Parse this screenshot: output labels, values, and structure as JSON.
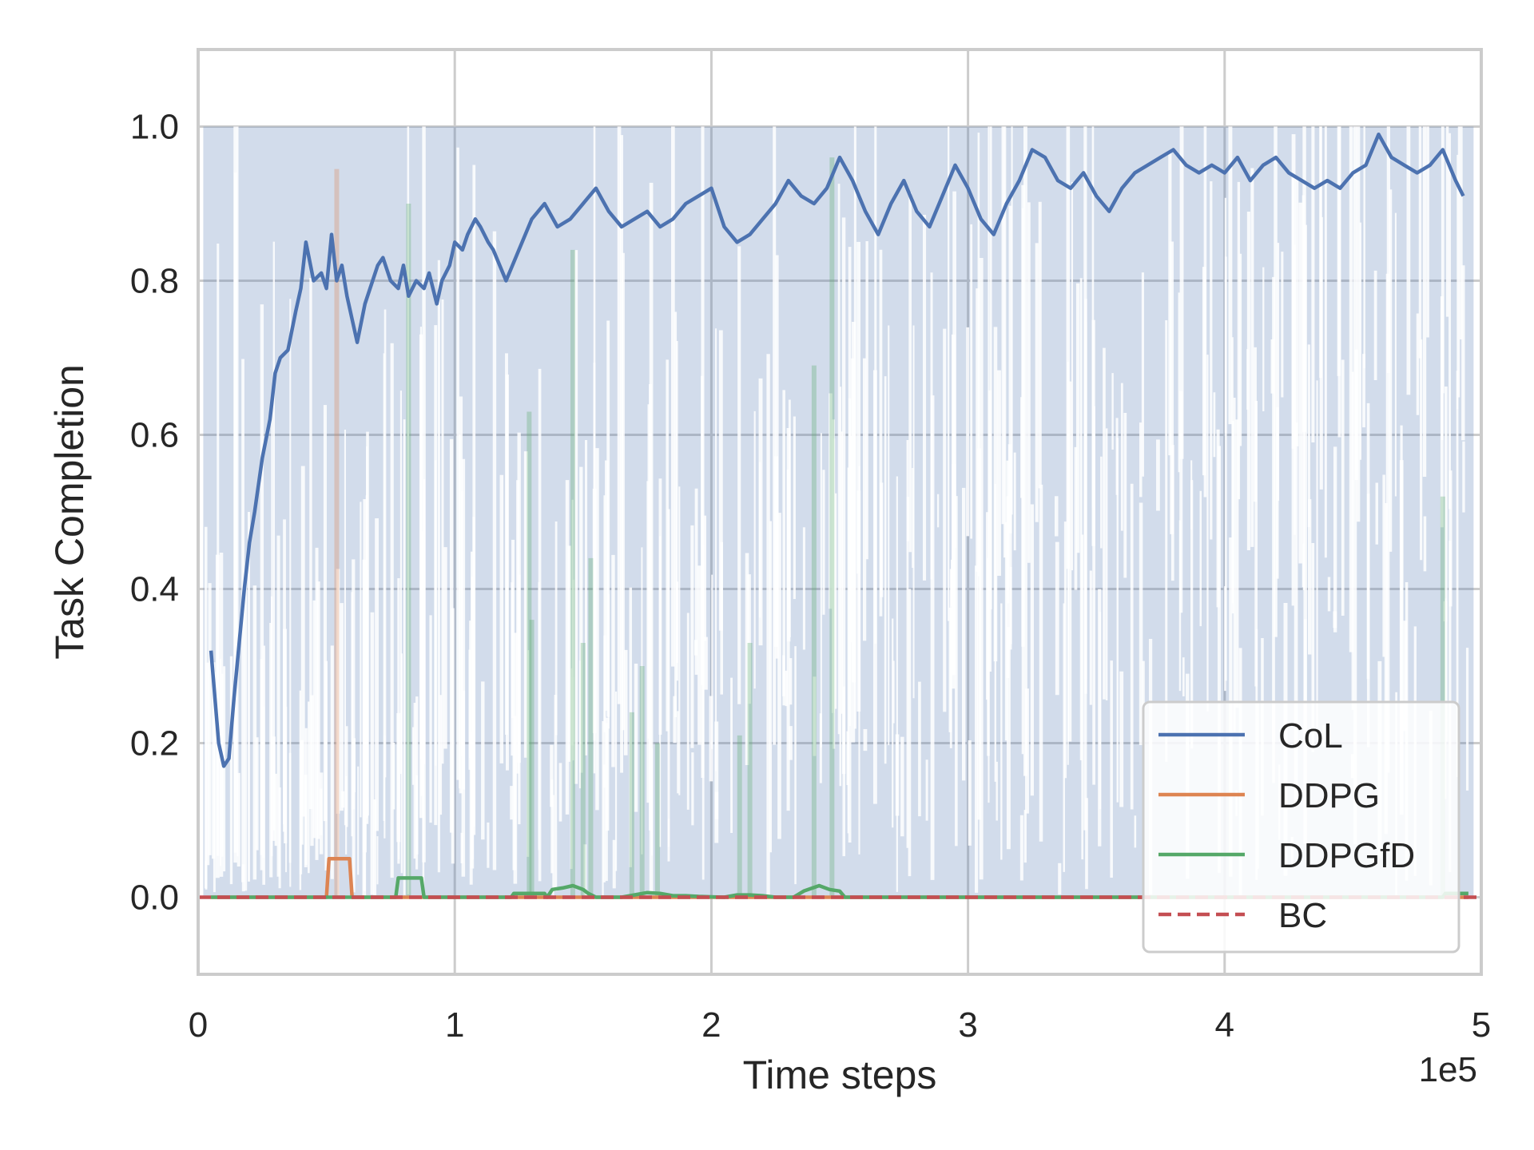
{
  "chart_data": {
    "type": "line",
    "xlabel": "Time steps",
    "ylabel": "Task Completion",
    "x_multiplier_label": "1e5",
    "xlim": [
      0,
      5
    ],
    "ylim": [
      -0.1,
      1.1
    ],
    "x_ticks": [
      0,
      1,
      2,
      3,
      4,
      5
    ],
    "x_tick_labels": [
      "0",
      "1",
      "2",
      "3",
      "4",
      "5"
    ],
    "y_ticks": [
      0.0,
      0.2,
      0.4,
      0.6,
      0.8,
      1.0
    ],
    "y_tick_labels": [
      "0.0",
      "0.2",
      "0.4",
      "0.6",
      "0.8",
      "1.0"
    ],
    "grid": true,
    "legend_position": "lower-right",
    "series": [
      {
        "name": "CoL",
        "color": "#4c72b0",
        "style": "solid",
        "x": [
          0.05,
          0.08,
          0.1,
          0.12,
          0.14,
          0.16,
          0.18,
          0.2,
          0.22,
          0.25,
          0.28,
          0.3,
          0.32,
          0.35,
          0.38,
          0.4,
          0.42,
          0.45,
          0.48,
          0.5,
          0.52,
          0.54,
          0.56,
          0.58,
          0.6,
          0.62,
          0.65,
          0.68,
          0.7,
          0.72,
          0.75,
          0.78,
          0.8,
          0.82,
          0.85,
          0.88,
          0.9,
          0.93,
          0.95,
          0.98,
          1.0,
          1.03,
          1.05,
          1.08,
          1.1,
          1.13,
          1.15,
          1.2,
          1.25,
          1.3,
          1.35,
          1.4,
          1.45,
          1.5,
          1.55,
          1.6,
          1.65,
          1.7,
          1.75,
          1.8,
          1.85,
          1.9,
          1.95,
          2.0,
          2.05,
          2.1,
          2.15,
          2.2,
          2.25,
          2.3,
          2.35,
          2.4,
          2.45,
          2.5,
          2.55,
          2.6,
          2.65,
          2.7,
          2.75,
          2.8,
          2.85,
          2.9,
          2.95,
          3.0,
          3.05,
          3.1,
          3.15,
          3.2,
          3.25,
          3.3,
          3.35,
          3.4,
          3.45,
          3.5,
          3.55,
          3.6,
          3.65,
          3.7,
          3.75,
          3.8,
          3.85,
          3.9,
          3.95,
          4.0,
          4.05,
          4.1,
          4.15,
          4.2,
          4.25,
          4.3,
          4.35,
          4.4,
          4.45,
          4.5,
          4.55,
          4.6,
          4.65,
          4.7,
          4.75,
          4.8,
          4.85,
          4.9,
          4.93
        ],
        "values": [
          0.32,
          0.2,
          0.17,
          0.18,
          0.26,
          0.33,
          0.4,
          0.46,
          0.5,
          0.57,
          0.62,
          0.68,
          0.7,
          0.71,
          0.76,
          0.79,
          0.85,
          0.8,
          0.81,
          0.79,
          0.86,
          0.8,
          0.82,
          0.78,
          0.75,
          0.72,
          0.77,
          0.8,
          0.82,
          0.83,
          0.8,
          0.79,
          0.82,
          0.78,
          0.8,
          0.79,
          0.81,
          0.77,
          0.8,
          0.82,
          0.85,
          0.84,
          0.86,
          0.88,
          0.87,
          0.85,
          0.84,
          0.8,
          0.84,
          0.88,
          0.9,
          0.87,
          0.88,
          0.9,
          0.92,
          0.89,
          0.87,
          0.88,
          0.89,
          0.87,
          0.88,
          0.9,
          0.91,
          0.92,
          0.87,
          0.85,
          0.86,
          0.88,
          0.9,
          0.93,
          0.91,
          0.9,
          0.92,
          0.96,
          0.93,
          0.89,
          0.86,
          0.9,
          0.93,
          0.89,
          0.87,
          0.91,
          0.95,
          0.92,
          0.88,
          0.86,
          0.9,
          0.93,
          0.97,
          0.96,
          0.93,
          0.92,
          0.94,
          0.91,
          0.89,
          0.92,
          0.94,
          0.95,
          0.96,
          0.97,
          0.95,
          0.94,
          0.95,
          0.94,
          0.96,
          0.93,
          0.95,
          0.96,
          0.94,
          0.93,
          0.92,
          0.93,
          0.92,
          0.94,
          0.95,
          0.99,
          0.96,
          0.95,
          0.94,
          0.95,
          0.97,
          0.93,
          0.91
        ]
      },
      {
        "name": "DDPG",
        "color": "#dd8452",
        "style": "solid",
        "x": [
          0.05,
          0.5,
          0.51,
          0.59,
          0.6,
          4.95
        ],
        "values": [
          0.0,
          0.0,
          0.05,
          0.05,
          0.0,
          0.0
        ]
      },
      {
        "name": "DDPGfD",
        "color": "#55a868",
        "style": "solid",
        "x": [
          0.05,
          0.77,
          0.78,
          0.87,
          0.88,
          1.22,
          1.23,
          1.35,
          1.36,
          1.38,
          1.42,
          1.46,
          1.5,
          1.52,
          1.55,
          1.65,
          1.7,
          1.75,
          1.8,
          1.85,
          1.9,
          1.95,
          2.05,
          2.1,
          2.15,
          2.2,
          2.25,
          2.32,
          2.36,
          2.42,
          2.46,
          2.5,
          2.52,
          4.85,
          4.86,
          4.95
        ],
        "values": [
          0.0,
          0.0,
          0.025,
          0.025,
          0.0,
          0.0,
          0.005,
          0.005,
          0.0,
          0.01,
          0.012,
          0.015,
          0.01,
          0.005,
          0.0,
          0.0,
          0.003,
          0.006,
          0.005,
          0.002,
          0.002,
          0.001,
          0.0,
          0.003,
          0.003,
          0.002,
          0.0,
          0.0,
          0.008,
          0.015,
          0.01,
          0.008,
          0.0,
          0.0,
          0.005,
          0.005
        ]
      },
      {
        "name": "BC",
        "color": "#c44e52",
        "style": "dashed",
        "x": [
          0.0,
          5.0
        ],
        "values": [
          0.0,
          0.0
        ]
      }
    ],
    "spikes": {
      "DDPG": [
        {
          "x": 0.54,
          "value": 0.945
        }
      ],
      "DDPGfD": [
        {
          "x": 0.82,
          "value": 0.9
        },
        {
          "x": 1.29,
          "value": 0.63
        },
        {
          "x": 1.3,
          "value": 0.36
        },
        {
          "x": 1.46,
          "value": 0.84
        },
        {
          "x": 1.5,
          "value": 0.33
        },
        {
          "x": 1.53,
          "value": 0.44
        },
        {
          "x": 1.69,
          "value": 0.24
        },
        {
          "x": 1.73,
          "value": 0.3
        },
        {
          "x": 1.79,
          "value": 0.2
        },
        {
          "x": 2.11,
          "value": 0.21
        },
        {
          "x": 2.15,
          "value": 0.33
        },
        {
          "x": 2.4,
          "value": 0.69
        },
        {
          "x": 2.47,
          "value": 0.96
        },
        {
          "x": 4.85,
          "value": 0.52
        }
      ]
    }
  }
}
